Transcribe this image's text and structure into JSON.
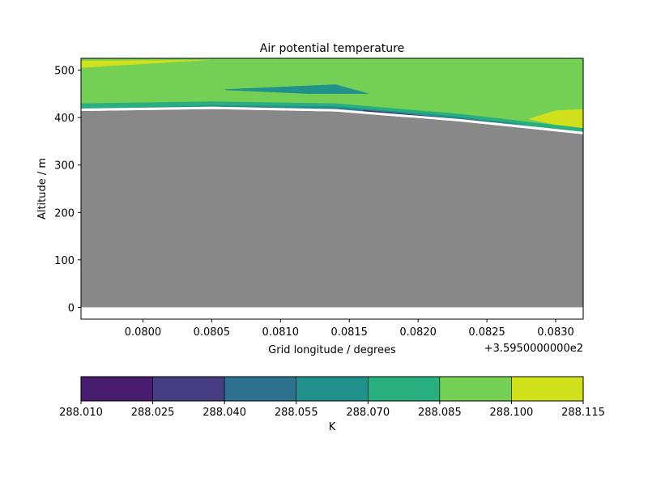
{
  "chart_data": [
    {
      "type": "contour",
      "title": "Air potential temperature",
      "xlabel": "Grid longitude / degrees",
      "ylabel": "Altitude / m",
      "x_offset_label": "+3.5950000000e2",
      "xlim": [
        0.07955,
        0.0832
      ],
      "ylim": [
        -25,
        525
      ],
      "x_ticks": [
        0.08,
        0.0805,
        0.081,
        0.0815,
        0.082,
        0.0825,
        0.083
      ],
      "x_tick_labels": [
        "0.0800",
        "0.0805",
        "0.0810",
        "0.0815",
        "0.0820",
        "0.0825",
        "0.0830"
      ],
      "y_ticks": [
        0,
        100,
        200,
        300,
        400,
        500
      ],
      "y_tick_labels": [
        "0",
        "100",
        "200",
        "300",
        "400",
        "500"
      ],
      "terrain_color": "#888888",
      "terrain_surface": [
        {
          "x": 0.07955,
          "y": 414
        },
        {
          "x": 0.0805,
          "y": 418
        },
        {
          "x": 0.0814,
          "y": 413
        },
        {
          "x": 0.0823,
          "y": 392
        },
        {
          "x": 0.0832,
          "y": 365
        }
      ],
      "filled_regions": [
        {
          "level": "288.085-288.100",
          "color": "#73d055",
          "points": [
            [
              0.07955,
              525
            ],
            [
              0.0832,
              525
            ],
            [
              0.0832,
              368
            ],
            [
              0.0823,
              400
            ],
            [
              0.0814,
              421
            ],
            [
              0.0805,
              424
            ],
            [
              0.07955,
              421
            ]
          ]
        },
        {
          "level": "288.100-288.115",
          "color": "#d0e11c",
          "points": [
            [
              0.07955,
              520
            ],
            [
              0.0805,
              522
            ],
            [
              0.07955,
              505
            ]
          ]
        },
        {
          "level": "288.100-288.115",
          "color": "#d0e11c",
          "points": [
            [
              0.0828,
              397
            ],
            [
              0.083,
              415
            ],
            [
              0.0832,
              418
            ],
            [
              0.0832,
              372
            ]
          ]
        },
        {
          "level": "288.055-288.070",
          "color": "#21918c",
          "points": [
            [
              0.0806,
              460
            ],
            [
              0.0814,
              470
            ],
            [
              0.08165,
              450
            ],
            [
              0.0812,
              450
            ],
            [
              0.0806,
              458
            ]
          ]
        },
        {
          "level": "288.070-288.085",
          "color": "#29af7f",
          "points": [
            [
              0.07955,
              430
            ],
            [
              0.0805,
              434
            ],
            [
              0.0814,
              430
            ],
            [
              0.0823,
              408
            ],
            [
              0.0832,
              378
            ],
            [
              0.0832,
              370
            ],
            [
              0.0823,
              398
            ],
            [
              0.0814,
              419
            ],
            [
              0.0805,
              421
            ],
            [
              0.07955,
              418
            ]
          ]
        },
        {
          "level": "288.055-288.070",
          "color": "#21918c",
          "points": [
            [
              0.0798,
              420
            ],
            [
              0.0805,
              426
            ],
            [
              0.0814,
              424
            ],
            [
              0.0823,
              402
            ],
            [
              0.083,
              375
            ],
            [
              0.0823,
              396
            ],
            [
              0.0814,
              416
            ],
            [
              0.0805,
              420
            ],
            [
              0.0798,
              416
            ]
          ]
        },
        {
          "level": "288.040-288.055",
          "color": "#2c728e",
          "points": [
            [
              0.0806,
              422
            ],
            [
              0.0814,
              420
            ],
            [
              0.0823,
              398
            ],
            [
              0.0828,
              386
            ],
            [
              0.0823,
              394
            ],
            [
              0.0814,
              415
            ],
            [
              0.0806,
              419
            ]
          ]
        },
        {
          "level": "288.010-288.025",
          "color": "#481d6f",
          "points": [
            [
              0.0816,
              416
            ],
            [
              0.0823,
              397
            ],
            [
              0.0825,
              390
            ],
            [
              0.082,
              398
            ],
            [
              0.0816,
              413
            ]
          ]
        }
      ]
    },
    {
      "type": "colorbar",
      "label": "K",
      "levels": [
        288.01,
        288.025,
        288.04,
        288.055,
        288.07,
        288.085,
        288.1,
        288.115
      ],
      "tick_labels": [
        "288.010",
        "288.025",
        "288.040",
        "288.055",
        "288.070",
        "288.085",
        "288.100",
        "288.115"
      ],
      "colors": [
        "#481d6f",
        "#453c82",
        "#2c728e",
        "#21918c",
        "#29af7f",
        "#73d055",
        "#d0e11c"
      ]
    }
  ]
}
